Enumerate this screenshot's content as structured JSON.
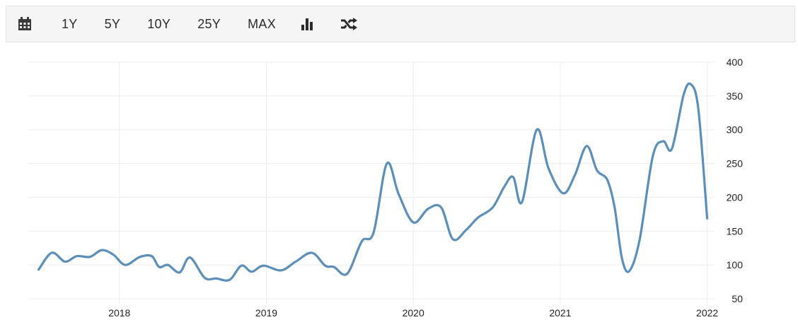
{
  "toolbar": {
    "ranges": [
      "1Y",
      "5Y",
      "10Y",
      "25Y",
      "MAX"
    ],
    "icons": [
      "calendar-icon",
      "bar-chart-icon",
      "shuffle-icon"
    ]
  },
  "chart_data": {
    "type": "line",
    "title": "",
    "xlabel": "",
    "ylabel": "",
    "x_ticks": [
      "2018",
      "2019",
      "2020",
      "2021",
      "2022"
    ],
    "y_ticks": [
      50,
      100,
      150,
      200,
      250,
      300,
      350,
      400
    ],
    "ylim": [
      50,
      400
    ],
    "xlim": [
      2017.38,
      2022.05
    ],
    "y_axis_position": "right",
    "grid": true,
    "line_color": "#5b8fba",
    "series": [
      {
        "x": [
          2017.45,
          2017.54,
          2017.63,
          2017.71,
          2017.8,
          2017.88,
          2017.96,
          2018.04,
          2018.14,
          2018.22,
          2018.27,
          2018.33,
          2018.41,
          2018.48,
          2018.58,
          2018.66,
          2018.75,
          2018.83,
          2018.9,
          2018.98,
          2019.1,
          2019.2,
          2019.31,
          2019.4,
          2019.46,
          2019.55,
          2019.65,
          2019.73,
          2019.82,
          2019.9,
          2020.0,
          2020.1,
          2020.19,
          2020.27,
          2020.36,
          2020.44,
          2020.54,
          2020.62,
          2020.68,
          2020.74,
          2020.84,
          2020.92,
          2021.02,
          2021.1,
          2021.18,
          2021.25,
          2021.32,
          2021.37,
          2021.42,
          2021.47,
          2021.54,
          2021.63,
          2021.7,
          2021.76,
          2021.84,
          2021.89,
          2021.94,
          2022.0
        ],
        "y": [
          93,
          118,
          105,
          113,
          112,
          122,
          115,
          100,
          112,
          113,
          97,
          100,
          89,
          111,
          81,
          80,
          78,
          99,
          90,
          99,
          92,
          105,
          118,
          99,
          97,
          87,
          135,
          148,
          250,
          205,
          163,
          183,
          185,
          138,
          152,
          170,
          185,
          216,
          230,
          193,
          300,
          243,
          206,
          233,
          276,
          240,
          226,
          185,
          110,
          91,
          137,
          261,
          283,
          272,
          352,
          367,
          330,
          169
        ]
      }
    ]
  }
}
